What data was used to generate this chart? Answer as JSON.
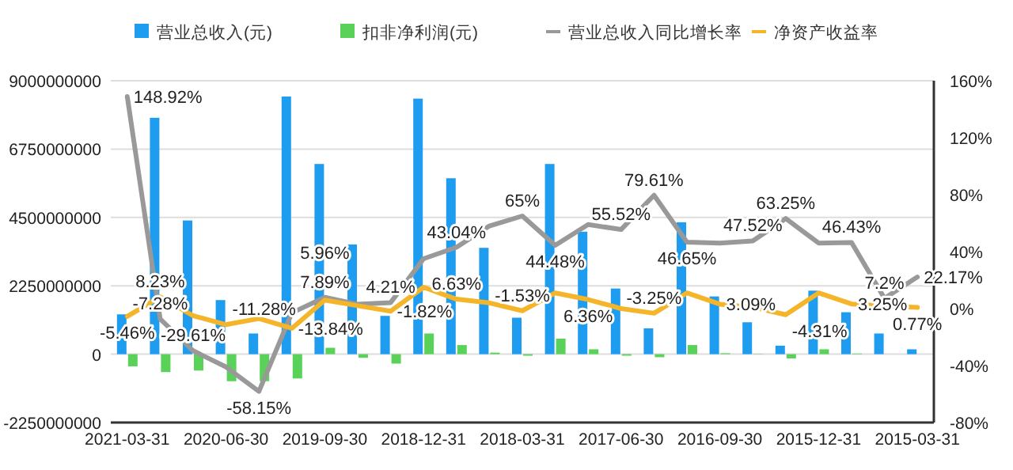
{
  "chart_data": {
    "type": "bar",
    "categories": [
      "2021-03-31",
      null,
      null,
      "2020-06-30",
      null,
      null,
      "2019-09-30",
      null,
      null,
      "2018-12-31",
      null,
      null,
      "2018-03-31",
      null,
      null,
      "2017-06-30",
      null,
      null,
      "2016-09-30",
      null,
      null,
      "2015-12-31",
      null,
      null,
      "2015-03-31"
    ],
    "series": [
      {
        "name": "营业总收入(元)",
        "color": "#1e9cf0",
        "values": [
          1310000000,
          7780000000,
          4400000000,
          1780000000,
          680000000,
          8480000000,
          6260000000,
          3610000000,
          1260000000,
          8410000000,
          5790000000,
          3500000000,
          1200000000,
          6260000000,
          4030000000,
          2160000000,
          850000000,
          4340000000,
          1900000000,
          1050000000,
          280000000,
          2090000000,
          1380000000,
          680000000,
          160000000
        ]
      },
      {
        "name": "扣非净利润(元)",
        "color": "#5ad25a",
        "values": [
          -400000000,
          -590000000,
          -540000000,
          -890000000,
          -890000000,
          -800000000,
          210000000,
          -120000000,
          -310000000,
          680000000,
          300000000,
          50000000,
          -50000000,
          510000000,
          160000000,
          -50000000,
          -100000000,
          300000000,
          30000000,
          10000000,
          -140000000,
          160000000,
          20000000,
          0,
          0
        ]
      },
      {
        "name": "营业总收入同比增长率",
        "type": "line",
        "axis": "y2",
        "color": "#999999",
        "values": [
          148.92,
          -7.28,
          -29.61,
          -41,
          -58.15,
          -3,
          7.89,
          3,
          4.21,
          35,
          43.04,
          58,
          65,
          44.48,
          59,
          55.52,
          79.61,
          46.65,
          46,
          47.52,
          63.25,
          46,
          46.43,
          7.2,
          22.17
        ],
        "value_labels": [
          "148.92%",
          "-7.28%",
          "-29.61%",
          null,
          "-58.15%",
          null,
          "7.89%",
          null,
          "4.21%",
          null,
          "43.04%",
          null,
          "65%",
          "44.48%",
          null,
          "55.52%",
          "79.61%",
          "46.65%",
          null,
          "47.52%",
          "63.25%",
          null,
          "46.43%",
          "7.2%",
          "22.17%"
        ]
      },
      {
        "name": "净资产收益率",
        "type": "line",
        "axis": "y2",
        "color": "#f5b52a",
        "values": [
          -5.46,
          8.23,
          -5,
          -11.28,
          -7,
          -13.84,
          5.96,
          2,
          -1.82,
          15,
          6.63,
          4,
          -1.53,
          11,
          6.36,
          0,
          -3.25,
          11,
          3.09,
          1,
          -4.31,
          11,
          3.25,
          2,
          0.77
        ],
        "value_labels": [
          "-5.46%",
          "8.23%",
          null,
          "-11.28%",
          null,
          "-13.84%",
          "5.96%",
          null,
          "-1.82%",
          null,
          "6.63%",
          null,
          "-1.53%",
          null,
          "6.36%",
          null,
          "-3.25%",
          null,
          "3.09%",
          null,
          "-4.31%",
          null,
          "3.25%",
          null,
          "0.77%"
        ]
      }
    ],
    "ylim": [
      -2250000000,
      9000000000
    ],
    "yticks": [
      -2250000000,
      0,
      2250000000,
      4500000000,
      6750000000,
      9000000000
    ],
    "y2lim": [
      -80,
      160
    ],
    "y2ticks": [
      {
        "value": -80,
        "label": "-80%"
      },
      {
        "value": -40,
        "label": "-40%"
      },
      {
        "value": 0,
        "label": "0%"
      },
      {
        "value": 40,
        "label": "40%"
      },
      {
        "value": 80,
        "label": "80%"
      },
      {
        "value": 120,
        "label": "120%"
      },
      {
        "value": 160,
        "label": "160%"
      }
    ],
    "grid": "y",
    "legend": "top"
  }
}
